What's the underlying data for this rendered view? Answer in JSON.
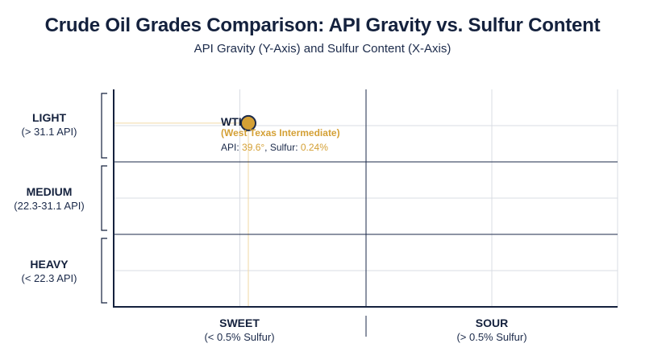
{
  "title": "Crude Oil Grades Comparison: API Gravity vs. Sulfur Content",
  "subtitle": "API Gravity (Y-Axis) and Sulfur Content (X-Axis)",
  "colors": {
    "axis": "#14213d",
    "grid": "#d9dce3",
    "divider": "#1b2a4a",
    "point_fill": "#d4a035",
    "point_stroke": "#1b2a4a",
    "guide": "#f2d9a6",
    "accent": "#d4a035"
  },
  "chart_data": {
    "type": "scatter",
    "title": "Crude Oil Grades Comparison: API Gravity vs. Sulfur Content",
    "subtitle": "API Gravity (Y-Axis) and Sulfur Content (X-Axis)",
    "y_categories": [
      {
        "name": "LIGHT",
        "range": "(> 31.1 API)"
      },
      {
        "name": "MEDIUM",
        "range": "(22.3-31.1 API)"
      },
      {
        "name": "HEAVY",
        "range": "(< 22.3 API)"
      }
    ],
    "x_categories": [
      {
        "name": "SWEET",
        "range": "(< 0.5% Sulfur)"
      },
      {
        "name": "SOUR",
        "range": "(> 0.5% Sulfur)"
      }
    ],
    "grid": true,
    "points": [
      {
        "name": "WTI",
        "full_name": "(West Texas Intermediate)",
        "api_label": "API: ",
        "api": "39.6°",
        "sulfur_label": ", Sulfur: ",
        "sulfur": "0.24%",
        "api_value": 39.6,
        "sulfur_value": 0.24,
        "x_category": "SWEET",
        "y_category": "LIGHT"
      }
    ]
  }
}
